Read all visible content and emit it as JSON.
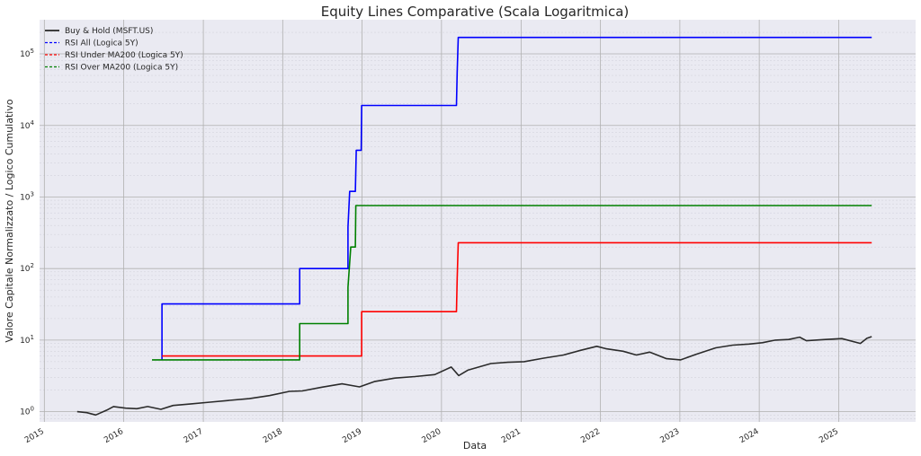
{
  "chart_data": {
    "type": "line",
    "title": "Equity Lines Comparative (Scala Logaritmica)",
    "xlabel": "Data",
    "ylabel": "Valore Capitale Normalizzato / Logico Cumulativo",
    "yscale": "log",
    "ylim": [
      0.72,
      300000
    ],
    "xlim": [
      "2014-12-10",
      "2025-12-20"
    ],
    "grid": true,
    "legend_position": "top-left",
    "x_tick_labels": [
      "2015",
      "2016",
      "2017",
      "2018",
      "2019",
      "2020",
      "2021",
      "2022",
      "2023",
      "2024",
      "2025"
    ],
    "y_tick_labels": [
      {
        "base": "10",
        "exp": "0",
        "value": 1
      },
      {
        "base": "10",
        "exp": "1",
        "value": 10
      },
      {
        "base": "10",
        "exp": "2",
        "value": 100
      },
      {
        "base": "10",
        "exp": "3",
        "value": 1000
      },
      {
        "base": "10",
        "exp": "4",
        "value": 10000
      },
      {
        "base": "10",
        "exp": "5",
        "value": 100000
      }
    ],
    "series": [
      {
        "name": "Buy & Hold (MSFT.US)",
        "color": "#2b2b2b",
        "style": "solid",
        "points": [
          [
            "2015-06-01",
            1.0
          ],
          [
            "2015-07-15",
            0.97
          ],
          [
            "2015-08-25",
            0.9
          ],
          [
            "2015-10-15",
            1.05
          ],
          [
            "2015-11-15",
            1.18
          ],
          [
            "2016-01-10",
            1.12
          ],
          [
            "2016-03-01",
            1.1
          ],
          [
            "2016-04-20",
            1.18
          ],
          [
            "2016-06-20",
            1.08
          ],
          [
            "2016-08-15",
            1.22
          ],
          [
            "2016-11-01",
            1.28
          ],
          [
            "2017-02-01",
            1.36
          ],
          [
            "2017-05-01",
            1.44
          ],
          [
            "2017-08-01",
            1.52
          ],
          [
            "2017-11-01",
            1.68
          ],
          [
            "2018-02-01",
            1.92
          ],
          [
            "2018-04-01",
            1.95
          ],
          [
            "2018-07-01",
            2.2
          ],
          [
            "2018-10-01",
            2.45
          ],
          [
            "2018-12-20",
            2.22
          ],
          [
            "2019-03-01",
            2.65
          ],
          [
            "2019-06-01",
            2.95
          ],
          [
            "2019-09-01",
            3.1
          ],
          [
            "2019-12-01",
            3.3
          ],
          [
            "2020-02-15",
            4.2
          ],
          [
            "2020-03-20",
            3.2
          ],
          [
            "2020-05-01",
            3.8
          ],
          [
            "2020-08-15",
            4.7
          ],
          [
            "2020-11-01",
            4.9
          ],
          [
            "2021-01-15",
            5.0
          ],
          [
            "2021-04-15",
            5.6
          ],
          [
            "2021-07-15",
            6.2
          ],
          [
            "2021-10-01",
            7.2
          ],
          [
            "2021-12-15",
            8.2
          ],
          [
            "2022-01-25",
            7.6
          ],
          [
            "2022-04-15",
            7.0
          ],
          [
            "2022-06-15",
            6.2
          ],
          [
            "2022-08-15",
            6.8
          ],
          [
            "2022-11-01",
            5.5
          ],
          [
            "2023-01-05",
            5.3
          ],
          [
            "2023-03-15",
            6.3
          ],
          [
            "2023-06-15",
            7.8
          ],
          [
            "2023-09-01",
            8.5
          ],
          [
            "2023-11-15",
            8.8
          ],
          [
            "2024-01-15",
            9.2
          ],
          [
            "2024-03-15",
            10.0
          ],
          [
            "2024-05-15",
            10.2
          ],
          [
            "2024-07-05",
            11.0
          ],
          [
            "2024-08-05",
            9.8
          ],
          [
            "2024-11-01",
            10.2
          ],
          [
            "2025-01-15",
            10.5
          ],
          [
            "2025-04-10",
            9.0
          ],
          [
            "2025-05-10",
            10.6
          ],
          [
            "2025-06-01",
            11.2
          ]
        ]
      },
      {
        "name": "RSI All (Logica 5Y)",
        "color": "#0000ff",
        "style": "dashed",
        "points": [
          [
            "2016-06-25",
            5.3
          ],
          [
            "2016-06-25",
            32
          ],
          [
            "2018-03-20",
            32
          ],
          [
            "2018-03-20",
            100
          ],
          [
            "2018-10-28",
            100
          ],
          [
            "2018-10-28",
            380
          ],
          [
            "2018-11-05",
            1200
          ],
          [
            "2018-12-01",
            1200
          ],
          [
            "2018-12-05",
            4500
          ],
          [
            "2018-12-28",
            4500
          ],
          [
            "2018-12-30",
            19000
          ],
          [
            "2020-03-10",
            19000
          ],
          [
            "2020-03-13",
            55000
          ],
          [
            "2020-03-18",
            170000
          ],
          [
            "2025-06-01",
            170000
          ]
        ]
      },
      {
        "name": "RSI Under MA200 (Logica 5Y)",
        "color": "#ff0000",
        "style": "dashed",
        "points": [
          [
            "2016-06-25",
            6.0
          ],
          [
            "2018-12-30",
            6.0
          ],
          [
            "2018-12-30",
            25
          ],
          [
            "2020-03-10",
            25
          ],
          [
            "2020-03-13",
            72
          ],
          [
            "2020-03-18",
            230
          ],
          [
            "2025-06-01",
            230
          ]
        ]
      },
      {
        "name": "RSI Over MA200 (Logica 5Y)",
        "color": "#008000",
        "style": "dashed",
        "points": [
          [
            "2016-05-10",
            5.3
          ],
          [
            "2018-03-20",
            5.3
          ],
          [
            "2018-03-20",
            17
          ],
          [
            "2018-10-28",
            17
          ],
          [
            "2018-10-28",
            55
          ],
          [
            "2018-11-10",
            200
          ],
          [
            "2018-12-01",
            200
          ],
          [
            "2018-12-03",
            760
          ],
          [
            "2025-06-01",
            760
          ]
        ]
      }
    ]
  }
}
